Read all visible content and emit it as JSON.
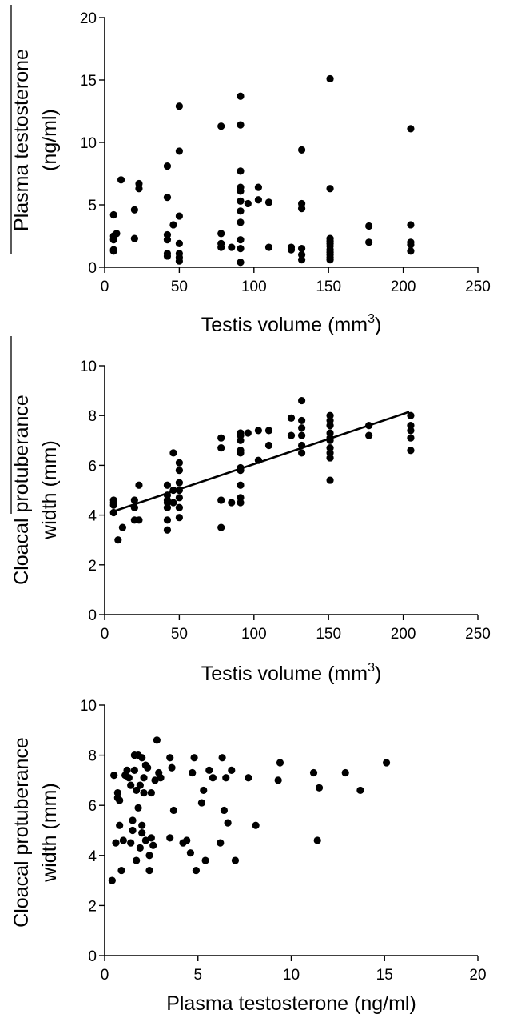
{
  "chart_data": [
    {
      "type": "scatter",
      "xlabel": "Testis volume (mm3)",
      "xlabel_main": "Testis volume (mm",
      "xlabel_sup": "3",
      "xlabel_tail": ")",
      "ylabel_lines": [
        "Plasma testosterone",
        "(ng/ml)"
      ],
      "xlim": [
        0,
        250
      ],
      "ylim": [
        0,
        20
      ],
      "xticks": [
        "0",
        "50",
        "100",
        "150",
        "200",
        "250"
      ],
      "yticks": [
        "0",
        "5",
        "10",
        "15",
        "20"
      ],
      "trendline": null,
      "points": [
        [
          6,
          4.2
        ],
        [
          6,
          2.5
        ],
        [
          6,
          2.2
        ],
        [
          6,
          1.4
        ],
        [
          6,
          1.3
        ],
        [
          8,
          2.7
        ],
        [
          11,
          7.0
        ],
        [
          20,
          4.6
        ],
        [
          20,
          2.3
        ],
        [
          23,
          6.7
        ],
        [
          23,
          6.3
        ],
        [
          42,
          8.1
        ],
        [
          42,
          5.6
        ],
        [
          42,
          2.6
        ],
        [
          42,
          2.2
        ],
        [
          42,
          1.1
        ],
        [
          42,
          0.9
        ],
        [
          46,
          3.4
        ],
        [
          50,
          12.9
        ],
        [
          50,
          9.3
        ],
        [
          50,
          4.1
        ],
        [
          50,
          1.9
        ],
        [
          50,
          1.1
        ],
        [
          50,
          0.8
        ],
        [
          50,
          0.5
        ],
        [
          78,
          11.3
        ],
        [
          78,
          2.7
        ],
        [
          78,
          1.9
        ],
        [
          78,
          1.6
        ],
        [
          85,
          1.6
        ],
        [
          91,
          13.7
        ],
        [
          91,
          11.4
        ],
        [
          91,
          7.7
        ],
        [
          91,
          6.4
        ],
        [
          91,
          6.1
        ],
        [
          91,
          5.3
        ],
        [
          91,
          4.5
        ],
        [
          91,
          3.6
        ],
        [
          91,
          2.2
        ],
        [
          91,
          1.5
        ],
        [
          91,
          0.4
        ],
        [
          96,
          5.1
        ],
        [
          103,
          6.4
        ],
        [
          103,
          5.4
        ],
        [
          110,
          5.2
        ],
        [
          110,
          1.6
        ],
        [
          125,
          1.6
        ],
        [
          125,
          1.4
        ],
        [
          132,
          9.4
        ],
        [
          132,
          5.1
        ],
        [
          132,
          4.7
        ],
        [
          132,
          1.5
        ],
        [
          132,
          1.0
        ],
        [
          132,
          0.6
        ],
        [
          151,
          15.1
        ],
        [
          151,
          6.3
        ],
        [
          151,
          2.3
        ],
        [
          151,
          2.1
        ],
        [
          151,
          1.9
        ],
        [
          151,
          1.7
        ],
        [
          151,
          1.4
        ],
        [
          151,
          1.2
        ],
        [
          151,
          1.0
        ],
        [
          151,
          0.8
        ],
        [
          151,
          0.6
        ],
        [
          177,
          3.3
        ],
        [
          177,
          2.0
        ],
        [
          205,
          11.1
        ],
        [
          205,
          3.4
        ],
        [
          205,
          2.0
        ],
        [
          205,
          1.8
        ],
        [
          205,
          1.3
        ]
      ]
    },
    {
      "type": "scatter",
      "xlabel": "Testis volume (mm3)",
      "xlabel_main": "Testis volume (mm",
      "xlabel_sup": "3",
      "xlabel_tail": ")",
      "ylabel_lines": [
        "Cloacal protuberance",
        "width (mm)"
      ],
      "xlim": [
        0,
        250
      ],
      "ylim": [
        0,
        10
      ],
      "xticks": [
        "0",
        "50",
        "100",
        "150",
        "200",
        "250"
      ],
      "yticks": [
        "0",
        "2",
        "4",
        "6",
        "8",
        "10"
      ],
      "trendline": {
        "x": [
          6,
          204
        ],
        "y": [
          4.15,
          8.15
        ]
      },
      "points": [
        [
          6,
          4.6
        ],
        [
          6,
          4.5
        ],
        [
          6,
          4.4
        ],
        [
          6,
          4.1
        ],
        [
          9,
          3.0
        ],
        [
          12,
          3.5
        ],
        [
          20,
          4.6
        ],
        [
          20,
          4.3
        ],
        [
          20,
          3.8
        ],
        [
          23,
          5.2
        ],
        [
          23,
          3.8
        ],
        [
          42,
          5.2
        ],
        [
          42,
          4.8
        ],
        [
          42,
          4.6
        ],
        [
          42,
          4.5
        ],
        [
          42,
          4.3
        ],
        [
          42,
          3.8
        ],
        [
          42,
          3.4
        ],
        [
          46,
          6.5
        ],
        [
          46,
          5.0
        ],
        [
          46,
          4.5
        ],
        [
          50,
          6.1
        ],
        [
          50,
          5.8
        ],
        [
          50,
          5.3
        ],
        [
          50,
          5.0
        ],
        [
          50,
          4.7
        ],
        [
          50,
          4.3
        ],
        [
          50,
          3.9
        ],
        [
          78,
          7.1
        ],
        [
          78,
          6.7
        ],
        [
          78,
          4.6
        ],
        [
          78,
          3.5
        ],
        [
          85,
          4.5
        ],
        [
          91,
          7.3
        ],
        [
          91,
          7.2
        ],
        [
          91,
          7.0
        ],
        [
          91,
          6.6
        ],
        [
          91,
          6.5
        ],
        [
          91,
          5.9
        ],
        [
          91,
          5.8
        ],
        [
          91,
          5.2
        ],
        [
          91,
          4.7
        ],
        [
          91,
          4.5
        ],
        [
          96,
          7.3
        ],
        [
          103,
          7.4
        ],
        [
          103,
          6.2
        ],
        [
          110,
          7.4
        ],
        [
          110,
          6.8
        ],
        [
          125,
          7.9
        ],
        [
          125,
          7.2
        ],
        [
          132,
          8.6
        ],
        [
          132,
          7.8
        ],
        [
          132,
          7.5
        ],
        [
          132,
          7.2
        ],
        [
          132,
          6.8
        ],
        [
          132,
          6.5
        ],
        [
          151,
          8.0
        ],
        [
          151,
          7.8
        ],
        [
          151,
          7.6
        ],
        [
          151,
          7.3
        ],
        [
          151,
          7.1
        ],
        [
          151,
          7.0
        ],
        [
          151,
          6.7
        ],
        [
          151,
          6.5
        ],
        [
          151,
          6.3
        ],
        [
          151,
          5.4
        ],
        [
          177,
          7.6
        ],
        [
          177,
          7.2
        ],
        [
          205,
          8.0
        ],
        [
          205,
          7.6
        ],
        [
          205,
          7.4
        ],
        [
          205,
          7.1
        ],
        [
          205,
          6.6
        ]
      ]
    },
    {
      "type": "scatter",
      "xlabel": "Plasma testosterone (ng/ml)",
      "xlabel_main": "Plasma testosterone (ng/ml)",
      "xlabel_sup": "",
      "xlabel_tail": "",
      "ylabel_lines": [
        "Cloacal protuberance",
        "width (mm)"
      ],
      "xlim": [
        0,
        20
      ],
      "ylim": [
        0,
        10
      ],
      "xticks": [
        "0",
        "5",
        "10",
        "15",
        "20"
      ],
      "yticks": [
        "0",
        "2",
        "4",
        "6",
        "8",
        "10"
      ],
      "trendline": null,
      "points": [
        [
          0.4,
          3.0
        ],
        [
          0.5,
          7.2
        ],
        [
          0.6,
          4.5
        ],
        [
          0.7,
          6.5
        ],
        [
          0.7,
          6.3
        ],
        [
          0.8,
          5.2
        ],
        [
          0.8,
          6.2
        ],
        [
          0.9,
          3.4
        ],
        [
          1.0,
          4.6
        ],
        [
          1.1,
          7.2
        ],
        [
          1.2,
          7.4
        ],
        [
          1.3,
          7.1
        ],
        [
          1.4,
          6.8
        ],
        [
          1.4,
          4.5
        ],
        [
          1.5,
          5.0
        ],
        [
          1.5,
          5.4
        ],
        [
          1.6,
          8.0
        ],
        [
          1.6,
          7.4
        ],
        [
          1.7,
          6.6
        ],
        [
          1.7,
          3.8
        ],
        [
          1.8,
          8.0
        ],
        [
          1.8,
          5.9
        ],
        [
          1.9,
          4.3
        ],
        [
          1.9,
          6.8
        ],
        [
          2.0,
          7.9
        ],
        [
          2.0,
          5.2
        ],
        [
          2.0,
          4.9
        ],
        [
          2.1,
          7.1
        ],
        [
          2.1,
          6.5
        ],
        [
          2.2,
          4.6
        ],
        [
          2.2,
          7.6
        ],
        [
          2.3,
          7.5
        ],
        [
          2.4,
          4.0
        ],
        [
          2.4,
          3.4
        ],
        [
          2.5,
          6.5
        ],
        [
          2.5,
          4.7
        ],
        [
          2.6,
          4.4
        ],
        [
          2.7,
          7.0
        ],
        [
          2.8,
          8.6
        ],
        [
          2.9,
          7.3
        ],
        [
          3.0,
          7.1
        ],
        [
          3.5,
          4.7
        ],
        [
          3.5,
          7.9
        ],
        [
          3.6,
          7.5
        ],
        [
          3.7,
          5.8
        ],
        [
          4.2,
          4.5
        ],
        [
          4.4,
          4.6
        ],
        [
          4.6,
          4.1
        ],
        [
          4.7,
          7.3
        ],
        [
          4.8,
          7.9
        ],
        [
          4.9,
          3.4
        ],
        [
          5.2,
          6.1
        ],
        [
          5.3,
          6.6
        ],
        [
          5.4,
          3.8
        ],
        [
          5.6,
          7.4
        ],
        [
          5.8,
          7.1
        ],
        [
          6.2,
          4.5
        ],
        [
          6.3,
          7.9
        ],
        [
          6.4,
          5.8
        ],
        [
          6.5,
          7.1
        ],
        [
          6.6,
          5.3
        ],
        [
          6.8,
          7.4
        ],
        [
          7.0,
          3.8
        ],
        [
          7.7,
          7.1
        ],
        [
          8.1,
          5.2
        ],
        [
          9.3,
          7.0
        ],
        [
          9.4,
          7.7
        ],
        [
          11.2,
          7.3
        ],
        [
          11.4,
          4.6
        ],
        [
          11.5,
          6.7
        ],
        [
          12.9,
          7.3
        ],
        [
          13.7,
          6.6
        ],
        [
          15.1,
          7.7
        ]
      ]
    }
  ]
}
